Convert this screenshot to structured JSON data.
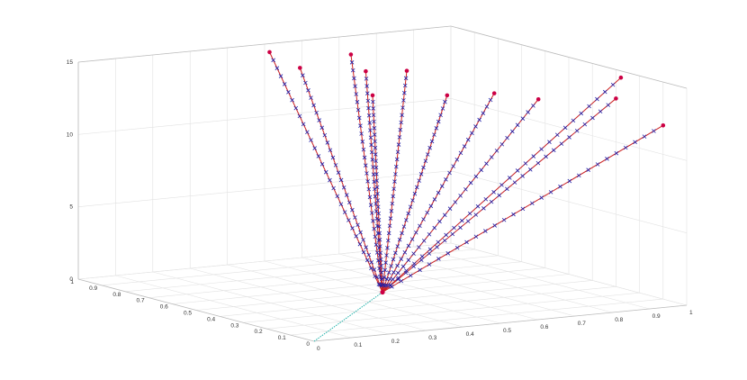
{
  "chart_data": {
    "type": "line",
    "subtype": "3d-line",
    "title": "",
    "xlabel": "",
    "ylabel": "",
    "zlabel": "",
    "grid": true,
    "xlim": [
      0,
      1
    ],
    "ylim": [
      0,
      1
    ],
    "zlim": [
      0,
      15
    ],
    "x_ticks": [
      "0",
      "0.1",
      "0.2",
      "0.3",
      "0.4",
      "0.5",
      "0.6",
      "0.7",
      "0.8",
      "0.9",
      "1"
    ],
    "y_ticks": [
      "0",
      "0.1",
      "0.2",
      "0.3",
      "0.4",
      "0.5",
      "0.6",
      "0.7",
      "0.8",
      "0.9",
      "1"
    ],
    "z_ticks": [
      "0",
      "5",
      "10",
      "15"
    ],
    "origin_line": {
      "from": [
        0,
        0,
        0
      ],
      "to": [
        0.5,
        0.5,
        0
      ],
      "color": "#20b2aa"
    },
    "apex": [
      0.5,
      0.5,
      0
    ],
    "rays": [
      {
        "end": [
          0.45,
          0.9,
          15
        ],
        "end_color": "#cc0044"
      },
      {
        "end": [
          0.5,
          0.85,
          14
        ],
        "end_color": "#cc0044"
      },
      {
        "end": [
          0.7,
          0.95,
          14
        ],
        "end_color": "#cc0044"
      },
      {
        "end": [
          0.55,
          0.65,
          14.5
        ],
        "end_color": "#cc0044"
      },
      {
        "end": [
          0.6,
          0.7,
          12.5
        ],
        "end_color": "#cc0044"
      },
      {
        "end": [
          0.85,
          0.95,
          12.5
        ],
        "end_color": "#cc0044"
      },
      {
        "end": [
          0.8,
          0.7,
          12
        ],
        "end_color": "#cc0044"
      },
      {
        "end": [
          0.8,
          0.5,
          13
        ],
        "end_color": "#cc0044"
      },
      {
        "end": [
          0.95,
          0.55,
          12
        ],
        "end_color": "#cc0044"
      },
      {
        "end": [
          1.0,
          0.3,
          13
        ],
        "end_color": "#cc0044"
      },
      {
        "end": [
          0.95,
          0.2,
          15
        ],
        "end_color": "#cc0044"
      },
      {
        "end": [
          1.0,
          0.1,
          12
        ],
        "end_color": "#cc0044"
      }
    ],
    "markers_per_ray": 30,
    "colors": {
      "line": "#cc2222",
      "marker": "#1f1fa8",
      "end_point": "#cc0044",
      "grid": "#e2e2e2",
      "axis": "#bcbcbc"
    }
  }
}
